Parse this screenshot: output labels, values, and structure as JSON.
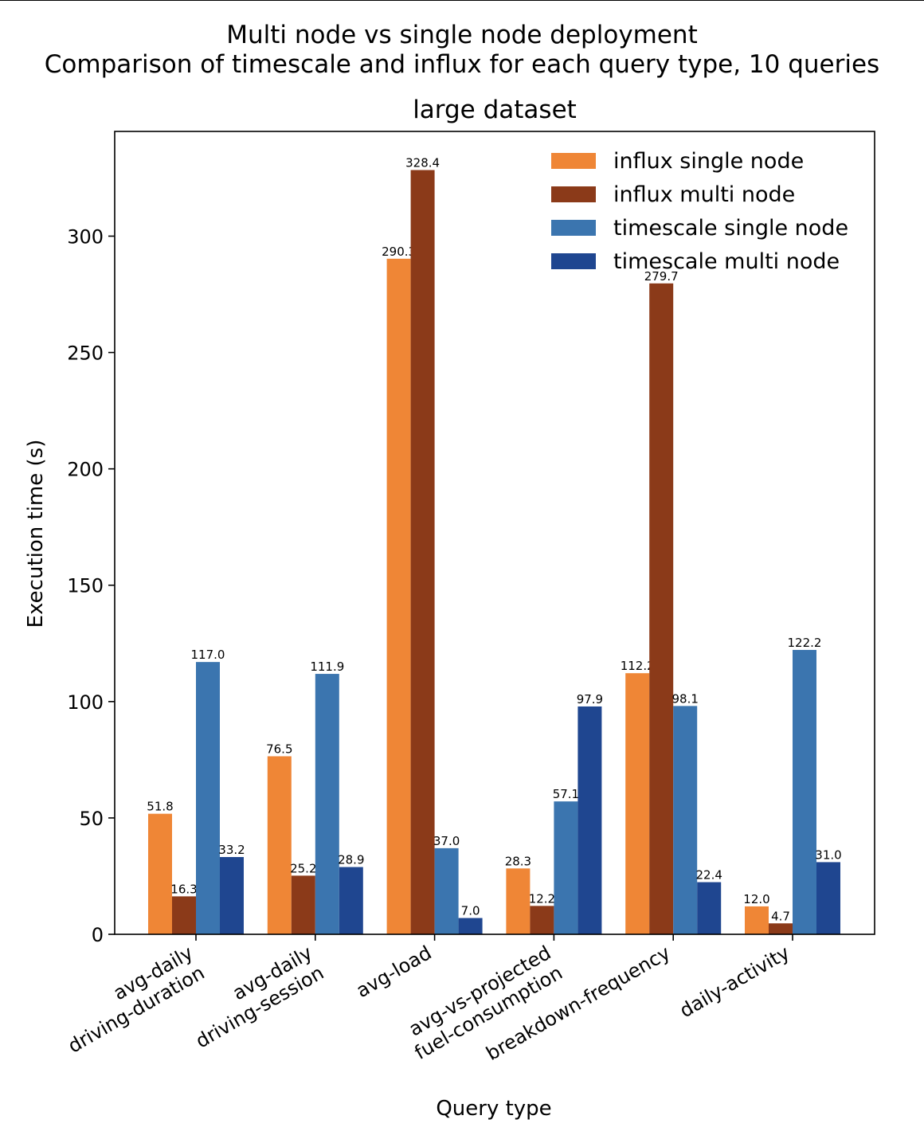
{
  "suptitle": {
    "line1": "Multi node vs single node deployment",
    "line2": "Comparison of timescale and influx for each query type, 10 queries"
  },
  "chart_data": {
    "type": "bar",
    "title": "large dataset",
    "xlabel": "Query type",
    "ylabel": "Execution time (s)",
    "ylim": [
      0,
      345
    ],
    "yticks": [
      0,
      50,
      100,
      150,
      200,
      250,
      300
    ],
    "categories": [
      [
        "avg-daily",
        "driving-duration"
      ],
      [
        "avg-daily",
        "driving-session"
      ],
      [
        "avg-load"
      ],
      [
        "avg-vs-projected",
        "fuel-consumption"
      ],
      [
        "breakdown-frequency"
      ],
      [
        "daily-activity"
      ]
    ],
    "series": [
      {
        "name": "influx single node",
        "color": "#ef8636",
        "values": [
          51.8,
          76.5,
          290.3,
          28.3,
          112.2,
          12.0
        ]
      },
      {
        "name": "influx multi node",
        "color": "#8b3a19",
        "values": [
          16.3,
          25.2,
          328.4,
          12.2,
          279.7,
          4.7
        ]
      },
      {
        "name": "timescale single node",
        "color": "#3b75af",
        "values": [
          117.0,
          111.9,
          37.0,
          57.1,
          98.1,
          122.2
        ]
      },
      {
        "name": "timescale multi node",
        "color": "#1f4690",
        "values": [
          33.2,
          28.9,
          7.0,
          97.9,
          22.4,
          31.0
        ]
      }
    ],
    "legend_position": "top-right",
    "grid": false
  }
}
